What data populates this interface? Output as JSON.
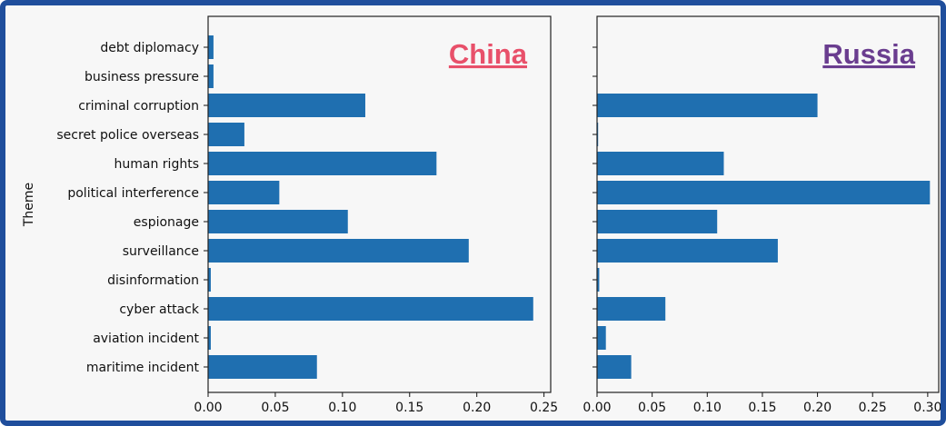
{
  "chart_data": {
    "type": "bar",
    "orientation": "horizontal",
    "ylabel": "Theme",
    "categories": [
      "debt diplomacy",
      "business pressure",
      "criminal corruption",
      "secret police overseas",
      "human rights",
      "political interference",
      "espionage",
      "surveillance",
      "disinformation",
      "cyber attack",
      "aviation incident",
      "maritime incident"
    ],
    "panels": [
      {
        "title": "China",
        "xlabel": "China",
        "title_color": "#e8506a",
        "xlim": [
          0,
          0.255
        ],
        "xticks": [
          "0.00",
          "0.05",
          "0.10",
          "0.15",
          "0.20",
          "0.25"
        ],
        "values": [
          0.004,
          0.004,
          0.117,
          0.027,
          0.17,
          0.053,
          0.104,
          0.194,
          0.002,
          0.242,
          0.002,
          0.081
        ]
      },
      {
        "title": "Russia",
        "xlabel": "Russia",
        "title_color": "#6a3d8f",
        "xlim": [
          0,
          0.31
        ],
        "xticks": [
          "0.00",
          "0.05",
          "0.10",
          "0.15",
          "0.20",
          "0.25",
          "0.30"
        ],
        "values": [
          0.0,
          0.0,
          0.2,
          0.001,
          0.115,
          0.302,
          0.109,
          0.164,
          0.002,
          0.062,
          0.008,
          0.031
        ]
      }
    ],
    "bar_color": "#1f6fb0"
  }
}
